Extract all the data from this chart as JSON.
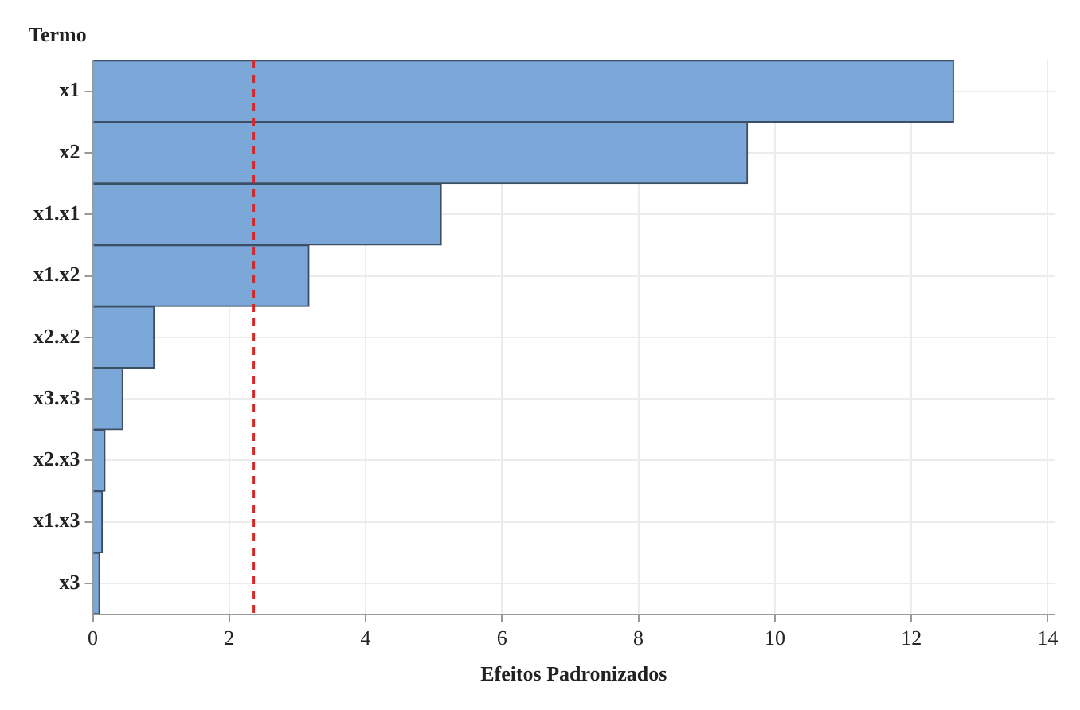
{
  "chart_data": {
    "type": "bar",
    "orientation": "horizontal",
    "ylabel": "Termo",
    "xlabel": "Efeitos Padronizados",
    "categories": [
      "x1",
      "x2",
      "x1.x1",
      "x1.x2",
      "x2.x2",
      "x3.x3",
      "x2.x3",
      "x1.x3",
      "x3"
    ],
    "values": [
      12.62,
      9.6,
      5.11,
      3.17,
      0.9,
      0.44,
      0.18,
      0.14,
      0.1
    ],
    "color": "#7ba7d9",
    "xlim": [
      0,
      14.1
    ],
    "xticks": [
      0,
      2,
      4,
      6,
      8,
      10,
      12,
      14
    ],
    "ref_lines": [
      {
        "axis": "x",
        "value": 2.36,
        "color": "#d62728",
        "line_style": "dashed"
      }
    ],
    "grid": true,
    "legend": false
  }
}
